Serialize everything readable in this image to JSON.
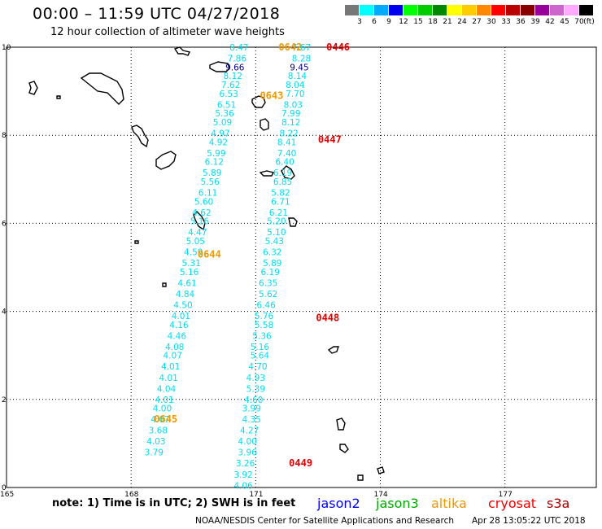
{
  "header": {
    "title": "00:00 – 11:59 UTC 04/27/2018",
    "subtitle": "12 hour collection of altimeter wave heights"
  },
  "legend": {
    "unit": "(ft)",
    "bins": [
      {
        "label": "3",
        "color": "#777777"
      },
      {
        "label": "6",
        "color": "#00ffff"
      },
      {
        "label": "9",
        "color": "#00aaff"
      },
      {
        "label": "12",
        "color": "#0000ee"
      },
      {
        "label": "15",
        "color": "#00ff00"
      },
      {
        "label": "18",
        "color": "#00cc00"
      },
      {
        "label": "21",
        "color": "#008800"
      },
      {
        "label": "24",
        "color": "#ffff00"
      },
      {
        "label": "27",
        "color": "#ffcc00"
      },
      {
        "label": "30",
        "color": "#ff8800"
      },
      {
        "label": "33",
        "color": "#ff0000"
      },
      {
        "label": "36",
        "color": "#bb0000"
      },
      {
        "label": "39",
        "color": "#880000"
      },
      {
        "label": "42",
        "color": "#990099"
      },
      {
        "label": "45",
        "color": "#cc66cc"
      },
      {
        "label": "70",
        "color": "#ffaaff"
      },
      {
        "label": "",
        "color": "#000000"
      }
    ]
  },
  "map": {
    "lat_ticks": [
      "10",
      "8",
      "6",
      "4",
      "2",
      "0"
    ],
    "lon_ticks": [
      "165",
      "168",
      "171",
      "174",
      "177"
    ],
    "track_colors": {
      "cyan": "#00ddee",
      "dark": "#000080",
      "orange": "#ee9900",
      "red": "#dd0000"
    },
    "time_labels": [
      {
        "text": "0642",
        "color": "orange",
        "lon": 171.55,
        "lat": 10.0
      },
      {
        "text": "0643",
        "color": "orange",
        "lon": 171.1,
        "lat": 8.9
      },
      {
        "text": "0644",
        "color": "orange",
        "lon": 169.6,
        "lat": 5.3
      },
      {
        "text": "0645",
        "color": "orange",
        "lon": 168.55,
        "lat": 1.55
      },
      {
        "text": "0446",
        "color": "red",
        "lon": 172.7,
        "lat": 10.0
      },
      {
        "text": "0447",
        "color": "red",
        "lon": 172.5,
        "lat": 7.9
      },
      {
        "text": "0448",
        "color": "red",
        "lon": 172.45,
        "lat": 3.85
      },
      {
        "text": "0449",
        "color": "red",
        "lon": 171.8,
        "lat": 0.55
      }
    ],
    "track_a": [
      {
        "lon": 170.6,
        "lat": 10.0,
        "v": "8.47"
      },
      {
        "lon": 170.55,
        "lat": 9.75,
        "v": "7.86"
      },
      {
        "lon": 170.5,
        "lat": 9.55,
        "v": "9.66",
        "dark": true
      },
      {
        "lon": 170.45,
        "lat": 9.35,
        "v": "8.12"
      },
      {
        "lon": 170.4,
        "lat": 9.15,
        "v": "7.62"
      },
      {
        "lon": 170.35,
        "lat": 8.95,
        "v": "6.53"
      },
      {
        "lon": 170.3,
        "lat": 8.7,
        "v": "6.51"
      },
      {
        "lon": 170.25,
        "lat": 8.5,
        "v": "5.36"
      },
      {
        "lon": 170.2,
        "lat": 8.3,
        "v": "5.09"
      },
      {
        "lon": 170.15,
        "lat": 8.05,
        "v": "4.97"
      },
      {
        "lon": 170.1,
        "lat": 7.85,
        "v": "4.92"
      },
      {
        "lon": 170.05,
        "lat": 7.6,
        "v": "5.99"
      },
      {
        "lon": 170.0,
        "lat": 7.4,
        "v": "6.12"
      },
      {
        "lon": 169.95,
        "lat": 7.15,
        "v": "5.89"
      },
      {
        "lon": 169.9,
        "lat": 6.95,
        "v": "5.56"
      },
      {
        "lon": 169.85,
        "lat": 6.7,
        "v": "6.11"
      },
      {
        "lon": 169.75,
        "lat": 6.5,
        "v": "5.60"
      },
      {
        "lon": 169.7,
        "lat": 6.25,
        "v": "4.62"
      },
      {
        "lon": 169.65,
        "lat": 6.05,
        "v": "5.16"
      },
      {
        "lon": 169.6,
        "lat": 5.8,
        "v": "4.47"
      },
      {
        "lon": 169.55,
        "lat": 5.6,
        "v": "5.05"
      },
      {
        "lon": 169.5,
        "lat": 5.35,
        "v": "4.59"
      },
      {
        "lon": 169.45,
        "lat": 5.1,
        "v": "5.31"
      },
      {
        "lon": 169.4,
        "lat": 4.9,
        "v": "5.16"
      },
      {
        "lon": 169.35,
        "lat": 4.65,
        "v": "4.61"
      },
      {
        "lon": 169.3,
        "lat": 4.4,
        "v": "4.84"
      },
      {
        "lon": 169.25,
        "lat": 4.15,
        "v": "4.50"
      },
      {
        "lon": 169.2,
        "lat": 3.9,
        "v": "4.01"
      },
      {
        "lon": 169.15,
        "lat": 3.7,
        "v": "4.16"
      },
      {
        "lon": 169.1,
        "lat": 3.45,
        "v": "4.46"
      },
      {
        "lon": 169.05,
        "lat": 3.2,
        "v": "4.08"
      },
      {
        "lon": 169.0,
        "lat": 3.0,
        "v": "4.07"
      },
      {
        "lon": 168.95,
        "lat": 2.75,
        "v": "4.01"
      },
      {
        "lon": 168.9,
        "lat": 2.5,
        "v": "4.01"
      },
      {
        "lon": 168.85,
        "lat": 2.25,
        "v": "4.04"
      },
      {
        "lon": 168.8,
        "lat": 2.0,
        "v": "4.01"
      },
      {
        "lon": 168.75,
        "lat": 1.8,
        "v": "4.00"
      },
      {
        "lon": 168.7,
        "lat": 1.55,
        "v": "4.07"
      },
      {
        "lon": 168.65,
        "lat": 1.3,
        "v": "3.68"
      },
      {
        "lon": 168.6,
        "lat": 1.05,
        "v": "4.03"
      },
      {
        "lon": 168.55,
        "lat": 0.8,
        "v": "3.79"
      }
    ],
    "track_b": [
      {
        "lon": 172.1,
        "lat": 10.0,
        "v": "7.67"
      },
      {
        "lon": 172.1,
        "lat": 9.75,
        "v": "8.28"
      },
      {
        "lon": 172.05,
        "lat": 9.55,
        "v": "9.45",
        "dark": true
      },
      {
        "lon": 172.0,
        "lat": 9.35,
        "v": "8.14"
      },
      {
        "lon": 171.95,
        "lat": 9.15,
        "v": "8.04"
      },
      {
        "lon": 171.95,
        "lat": 8.95,
        "v": "7.70"
      },
      {
        "lon": 171.9,
        "lat": 8.7,
        "v": "8.03"
      },
      {
        "lon": 171.85,
        "lat": 8.5,
        "v": "7.99"
      },
      {
        "lon": 171.85,
        "lat": 8.3,
        "v": "8.12"
      },
      {
        "lon": 171.8,
        "lat": 8.05,
        "v": "8.22"
      },
      {
        "lon": 171.75,
        "lat": 7.85,
        "v": "8.41"
      },
      {
        "lon": 171.75,
        "lat": 7.6,
        "v": "7.40"
      },
      {
        "lon": 171.7,
        "lat": 7.4,
        "v": "6.40"
      },
      {
        "lon": 171.65,
        "lat": 7.15,
        "v": "6.19"
      },
      {
        "lon": 171.65,
        "lat": 6.95,
        "v": "6.85"
      },
      {
        "lon": 171.6,
        "lat": 6.7,
        "v": "5.82"
      },
      {
        "lon": 171.6,
        "lat": 6.5,
        "v": "6.71"
      },
      {
        "lon": 171.55,
        "lat": 6.25,
        "v": "6.21"
      },
      {
        "lon": 171.5,
        "lat": 6.05,
        "v": "5.20"
      },
      {
        "lon": 171.5,
        "lat": 5.8,
        "v": "5.10"
      },
      {
        "lon": 171.45,
        "lat": 5.6,
        "v": "5.43"
      },
      {
        "lon": 171.4,
        "lat": 5.35,
        "v": "6.32"
      },
      {
        "lon": 171.4,
        "lat": 5.1,
        "v": "5.89"
      },
      {
        "lon": 171.35,
        "lat": 4.9,
        "v": "6.19"
      },
      {
        "lon": 171.3,
        "lat": 4.65,
        "v": "6.35"
      },
      {
        "lon": 171.3,
        "lat": 4.4,
        "v": "5.62"
      },
      {
        "lon": 171.25,
        "lat": 4.15,
        "v": "6.46"
      },
      {
        "lon": 171.2,
        "lat": 3.9,
        "v": "5.76"
      },
      {
        "lon": 171.2,
        "lat": 3.7,
        "v": "5.58"
      },
      {
        "lon": 171.15,
        "lat": 3.45,
        "v": "5.36"
      },
      {
        "lon": 171.1,
        "lat": 3.2,
        "v": "5.16"
      },
      {
        "lon": 171.1,
        "lat": 3.0,
        "v": "5.64"
      },
      {
        "lon": 171.05,
        "lat": 2.75,
        "v": "4.70"
      },
      {
        "lon": 171.0,
        "lat": 2.5,
        "v": "4.93"
      },
      {
        "lon": 171.0,
        "lat": 2.25,
        "v": "5.39"
      },
      {
        "lon": 170.95,
        "lat": 2.0,
        "v": "4.60"
      },
      {
        "lon": 170.9,
        "lat": 1.8,
        "v": "3.99"
      },
      {
        "lon": 170.9,
        "lat": 1.55,
        "v": "4.35"
      },
      {
        "lon": 170.85,
        "lat": 1.3,
        "v": "4.27"
      },
      {
        "lon": 170.8,
        "lat": 1.05,
        "v": "4.00"
      },
      {
        "lon": 170.8,
        "lat": 0.8,
        "v": "3.96"
      },
      {
        "lon": 170.75,
        "lat": 0.55,
        "v": "3.26"
      },
      {
        "lon": 170.7,
        "lat": 0.3,
        "v": "3.92"
      },
      {
        "lon": 170.7,
        "lat": 0.05,
        "v": "4.06"
      }
    ]
  },
  "footer": {
    "note": "note: 1) Time is in UTC; 2) SWH is in feet",
    "satellites": [
      {
        "name": "jason2",
        "color": "#0000ee"
      },
      {
        "name": "jason3",
        "color": "#00aa00"
      },
      {
        "name": "altika",
        "color": "#ee9900"
      },
      {
        "name": "cryosat",
        "color": "#ee0000"
      },
      {
        "name": "s3a",
        "color": "#aa0000"
      }
    ],
    "credit": "NOAA/NESDIS Center for Satellite Applications and Research",
    "timestamp": "Apr 28 13:05:22 UTC 2018"
  }
}
